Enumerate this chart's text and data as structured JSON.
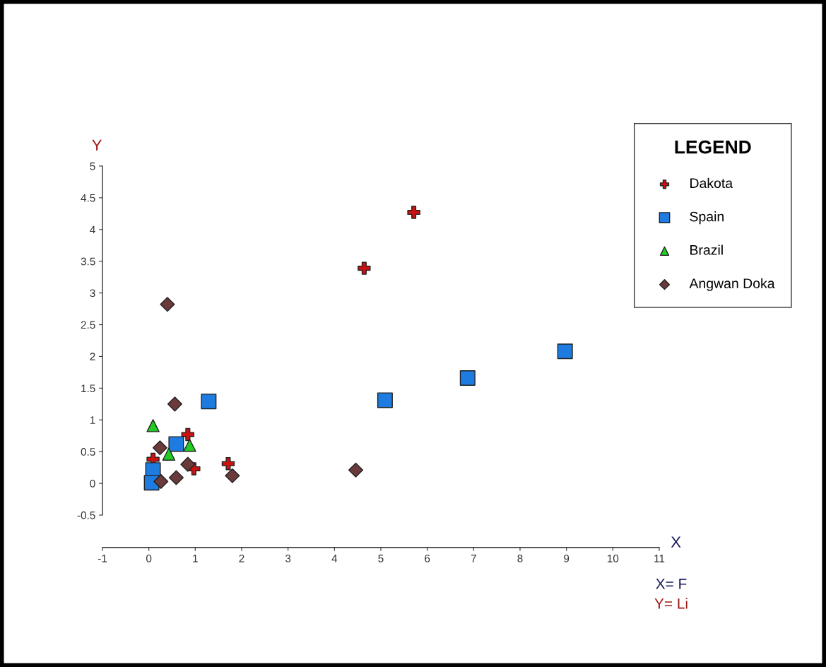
{
  "chart_data": {
    "type": "scatter",
    "xlabel": "X",
    "ylabel": "Y",
    "legend_title": "LEGEND",
    "legend": "right",
    "xlim": [
      -1,
      11
    ],
    "ylim": [
      -0.5,
      5
    ],
    "xticks": [
      -1,
      0,
      1,
      2,
      3,
      4,
      5,
      6,
      7,
      8,
      9,
      10,
      11
    ],
    "yticks": [
      -0.5,
      0,
      0.5,
      1,
      1.5,
      2,
      2.5,
      3,
      3.5,
      4,
      4.5,
      5
    ],
    "annotations": [
      "X= F",
      "Y= Li"
    ],
    "series": [
      {
        "name": "Dakota",
        "color": "#cc1111",
        "marker": "cross",
        "x": [
          0.84,
          0.09,
          0.97,
          1.71,
          4.64,
          5.71
        ],
        "values": [
          0.77,
          0.38,
          0.23,
          0.31,
          3.39,
          4.27
        ]
      },
      {
        "name": "Spain",
        "color": "#1e7be0",
        "marker": "square",
        "x": [
          1.29,
          0.59,
          0.09,
          0.06,
          5.09,
          6.87,
          8.97
        ],
        "values": [
          1.29,
          0.62,
          0.21,
          0.01,
          1.31,
          1.66,
          2.08
        ]
      },
      {
        "name": "Brazil",
        "color": "#22cc22",
        "marker": "triangle",
        "x": [
          0.09,
          0.88,
          0.43
        ],
        "values": [
          0.91,
          0.6,
          0.46
        ]
      },
      {
        "name": "Angwan Doka",
        "color": "#6b3a3a",
        "marker": "diamond",
        "x": [
          0.4,
          0.56,
          0.24,
          0.84,
          1.8,
          0.26,
          0.59,
          4.46
        ],
        "values": [
          2.82,
          1.25,
          0.56,
          0.3,
          0.12,
          0.03,
          0.09,
          0.21
        ]
      }
    ]
  }
}
